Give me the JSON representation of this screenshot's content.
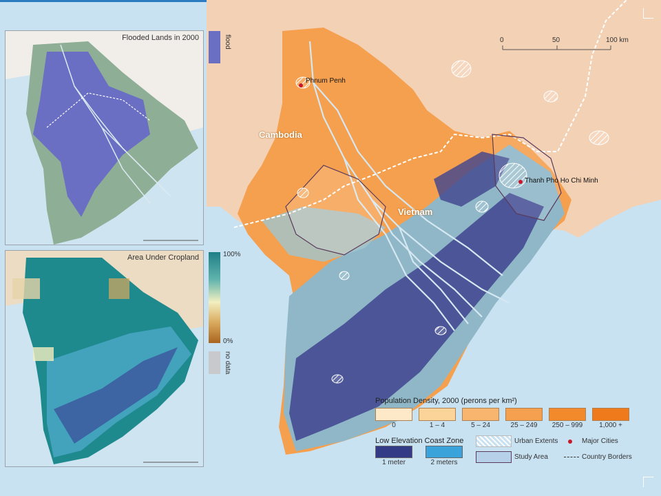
{
  "insets": {
    "flood": {
      "title": "Flooded Lands in 2000",
      "legend_label": "flood",
      "color": "#6b6fc4"
    },
    "cropland": {
      "title": "Area Under Cropland",
      "max_label": "100%",
      "min_label": "0%",
      "nodata_label": "no data"
    }
  },
  "labels": {
    "cambodia": "Cambodia",
    "vietnam": "Vietnam",
    "phnom_penh": "Phnum Penh",
    "hcmc": "Thanh Pho Ho Chi Minh"
  },
  "scale": {
    "ticks": [
      "0",
      "50",
      "100 km"
    ]
  },
  "legend": {
    "density_title": "Population Density, 2000 (perons per km²)",
    "density_classes": [
      {
        "label": "0",
        "color": "#fde9c7"
      },
      {
        "label": "1 – 4",
        "color": "#fbd49a"
      },
      {
        "label": "5 – 24",
        "color": "#f8b56e"
      },
      {
        "label": "25 – 249",
        "color": "#f5a04f"
      },
      {
        "label": "250 – 999",
        "color": "#f28a2c"
      },
      {
        "label": "1,000 +",
        "color": "#ee7a1c"
      }
    ],
    "lecz_title": "Low Elevation Coast Zone",
    "lecz_classes": [
      {
        "label": "1 meter",
        "color": "#333a86"
      },
      {
        "label": "2 meters",
        "color": "#3aa3d9"
      }
    ],
    "urban_label": "Urban Extents",
    "study_label": "Study Area",
    "city_label": "Major Cities",
    "border_label": "Country Borders"
  }
}
